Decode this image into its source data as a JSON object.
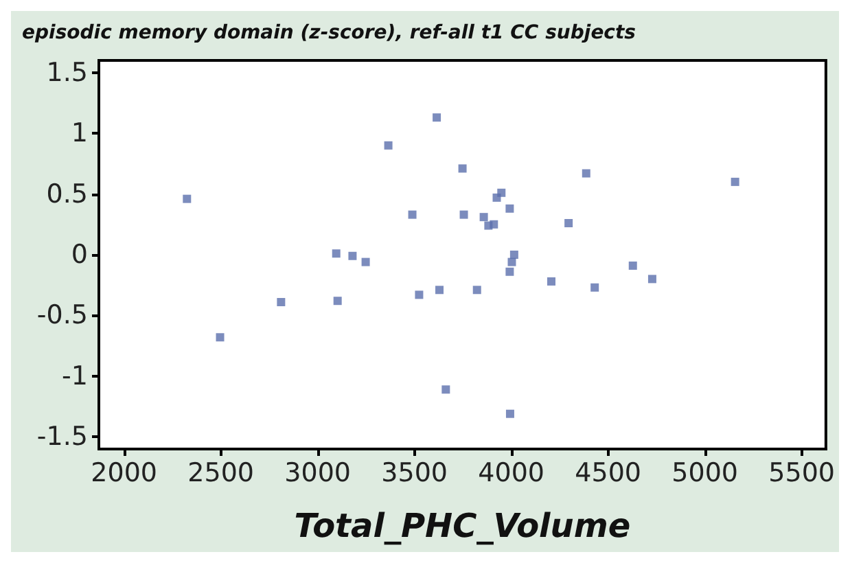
{
  "chart_data": {
    "type": "scatter",
    "title": "episodic memory domain (z-score), ref-all t1 CC subjects",
    "xlabel": "Total_PHC_Volume",
    "x": [
      2325,
      2496,
      2811,
      3103,
      3096,
      3180,
      3248,
      3365,
      3489,
      3524,
      3615,
      3629,
      3662,
      3748,
      3755,
      3823,
      3925,
      3949,
      3992,
      3858,
      3882,
      3910,
      4015,
      4003,
      3992,
      3994,
      4207,
      4296,
      4387,
      4431,
      4628,
      4728,
      5156
    ],
    "values": [
      0.46,
      -0.68,
      -0.39,
      -0.38,
      0.01,
      -0.01,
      -0.06,
      0.9,
      0.33,
      -0.33,
      1.13,
      -0.29,
      -1.11,
      0.71,
      0.33,
      -0.29,
      0.47,
      0.51,
      0.38,
      0.31,
      0.24,
      0.25,
      0.0,
      -0.06,
      -0.14,
      -1.31,
      -0.22,
      0.26,
      0.67,
      -0.27,
      -0.09,
      -0.2,
      0.6
    ],
    "color": "#5b6fad",
    "marker": "square",
    "xlim": [
      1870,
      5625
    ],
    "xticks": [
      2000,
      2500,
      3000,
      3500,
      4000,
      4500,
      5000,
      5500
    ],
    "ylim": [
      -1.6,
      1.6
    ],
    "yticks": [
      -1.5,
      -1,
      -0.5,
      0,
      0.5,
      1,
      1.5
    ],
    "grid": false
  }
}
